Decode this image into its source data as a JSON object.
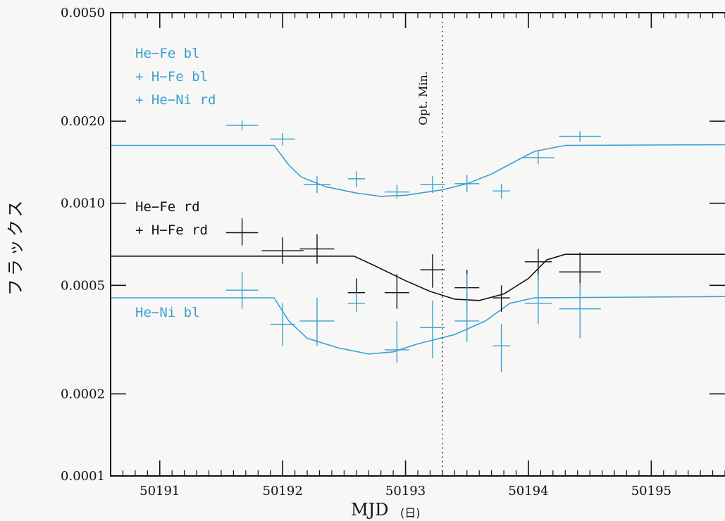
{
  "chart_data": {
    "type": "scatter",
    "x_ticks": [
      50191,
      50192,
      50193,
      50194,
      50195
    ],
    "x_tick_labels": [
      "50191",
      "50192",
      "50193",
      "50194",
      "50195"
    ],
    "y_ticks": [
      0.0001,
      0.0002,
      0.0005,
      0.001,
      0.002,
      0.005
    ],
    "y_tick_labels": [
      "0.0001",
      "0.0002",
      "0.0005",
      "0.0010",
      "0.0020",
      "0.0050"
    ],
    "xlim": [
      50190.6,
      50195.6
    ],
    "ylim": [
      0.0001,
      0.005
    ],
    "yscale": "log",
    "xlabel": "MJD",
    "xlabel_unit": "(日)",
    "ylabel": "フラックス",
    "vline": {
      "x": 50193.3,
      "label": "Opt. Min."
    },
    "legend_groups": [
      {
        "color": "#3aa0d2",
        "entries": [
          "He−Fe bl",
          "+ H−Fe bl",
          "+ He−Ni rd"
        ]
      },
      {
        "color": "#111111",
        "entries": [
          "He−Fe rd",
          "+ H−Fe rd"
        ]
      },
      {
        "color": "#3aa0d2",
        "entries": [
          "He−Ni bl"
        ]
      }
    ],
    "model_curves": [
      {
        "color": "#3aa0d2",
        "points": [
          [
            50190.6,
            0.00163
          ],
          [
            50191.4,
            0.00163
          ],
          [
            50191.93,
            0.00163
          ],
          [
            50192.05,
            0.00138
          ],
          [
            50192.15,
            0.00125
          ],
          [
            50192.35,
            0.00115
          ],
          [
            50192.6,
            0.00109
          ],
          [
            50192.8,
            0.00106
          ],
          [
            50193.0,
            0.00107
          ],
          [
            50193.3,
            0.00112
          ],
          [
            50193.5,
            0.00118
          ],
          [
            50193.7,
            0.00128
          ],
          [
            50193.9,
            0.00143
          ],
          [
            50194.05,
            0.00155
          ],
          [
            50194.3,
            0.00163
          ],
          [
            50195.6,
            0.00164
          ]
        ]
      },
      {
        "color": "#111111",
        "points": [
          [
            50190.6,
            0.00064
          ],
          [
            50191.5,
            0.00064
          ],
          [
            50192.58,
            0.00064
          ],
          [
            50192.75,
            0.00059
          ],
          [
            50193.0,
            0.00052
          ],
          [
            50193.2,
            0.000475
          ],
          [
            50193.4,
            0.000445
          ],
          [
            50193.6,
            0.00044
          ],
          [
            50193.8,
            0.000465
          ],
          [
            50194.0,
            0.00053
          ],
          [
            50194.15,
            0.00062
          ],
          [
            50194.3,
            0.00065
          ],
          [
            50195.6,
            0.00065
          ]
        ]
      },
      {
        "color": "#3aa0d2",
        "points": [
          [
            50190.6,
            0.00045
          ],
          [
            50191.5,
            0.00045
          ],
          [
            50191.93,
            0.00045
          ],
          [
            50192.05,
            0.00037
          ],
          [
            50192.2,
            0.00032
          ],
          [
            50192.45,
            0.000295
          ],
          [
            50192.7,
            0.00028
          ],
          [
            50192.9,
            0.000285
          ],
          [
            50193.1,
            0.000305
          ],
          [
            50193.4,
            0.00033
          ],
          [
            50193.65,
            0.00037
          ],
          [
            50193.85,
            0.00043
          ],
          [
            50194.05,
            0.00045
          ],
          [
            50195.6,
            0.000455
          ]
        ]
      }
    ],
    "series": [
      {
        "color": "#3aa0d2",
        "points": [
          {
            "x": 50191.67,
            "y": 0.00193,
            "xerr": 0.13,
            "ylo": 0.00185,
            "yhi": 0.00201
          },
          {
            "x": 50192.0,
            "y": 0.00172,
            "xerr": 0.1,
            "ylo": 0.00163,
            "yhi": 0.00181
          },
          {
            "x": 50192.28,
            "y": 0.00117,
            "xerr": 0.11,
            "ylo": 0.00109,
            "yhi": 0.00126
          },
          {
            "x": 50192.6,
            "y": 0.00123,
            "xerr": 0.07,
            "ylo": 0.00115,
            "yhi": 0.00131
          },
          {
            "x": 50192.93,
            "y": 0.0011,
            "xerr": 0.1,
            "ylo": 0.00104,
            "yhi": 0.00117
          },
          {
            "x": 50193.22,
            "y": 0.00117,
            "xerr": 0.1,
            "ylo": 0.00109,
            "yhi": 0.00126
          },
          {
            "x": 50193.5,
            "y": 0.00118,
            "xerr": 0.1,
            "ylo": 0.0011,
            "yhi": 0.00127
          },
          {
            "x": 50193.78,
            "y": 0.00111,
            "xerr": 0.07,
            "ylo": 0.00104,
            "yhi": 0.00118
          },
          {
            "x": 50194.08,
            "y": 0.00147,
            "xerr": 0.13,
            "ylo": 0.00139,
            "yhi": 0.00156
          },
          {
            "x": 50194.42,
            "y": 0.00176,
            "xerr": 0.17,
            "ylo": 0.00168,
            "yhi": 0.00184
          }
        ]
      },
      {
        "color": "#111111",
        "points": [
          {
            "x": 50191.67,
            "y": 0.00078,
            "xerr": 0.13,
            "ylo": 0.0007,
            "yhi": 0.00088
          },
          {
            "x": 50192.0,
            "y": 0.00067,
            "xerr": 0.17,
            "ylo": 0.0006,
            "yhi": 0.00075
          },
          {
            "x": 50192.28,
            "y": 0.00068,
            "xerr": 0.14,
            "ylo": 0.0006,
            "yhi": 0.00077
          },
          {
            "x": 50192.6,
            "y": 0.00047,
            "xerr": 0.07,
            "ylo": 0.00042,
            "yhi": 0.00053
          },
          {
            "x": 50192.93,
            "y": 0.00047,
            "xerr": 0.1,
            "ylo": 0.00041,
            "yhi": 0.00055
          },
          {
            "x": 50193.22,
            "y": 0.00057,
            "xerr": 0.1,
            "ylo": 0.00049,
            "yhi": 0.00065
          },
          {
            "x": 50193.5,
            "y": 0.00049,
            "xerr": 0.1,
            "ylo": 0.00042,
            "yhi": 0.00057
          },
          {
            "x": 50193.78,
            "y": 0.00045,
            "xerr": 0.07,
            "ylo": 0.0004,
            "yhi": 0.0005
          },
          {
            "x": 50194.08,
            "y": 0.00061,
            "xerr": 0.11,
            "ylo": 0.00052,
            "yhi": 0.00068
          },
          {
            "x": 50194.42,
            "y": 0.00056,
            "xerr": 0.17,
            "ylo": 0.00048,
            "yhi": 0.00066
          }
        ]
      },
      {
        "color": "#3aa0d2",
        "points": [
          {
            "x": 50191.67,
            "y": 0.00048,
            "xerr": 0.13,
            "ylo": 0.00041,
            "yhi": 0.00056
          },
          {
            "x": 50192.0,
            "y": 0.00036,
            "xerr": 0.1,
            "ylo": 0.0003,
            "yhi": 0.00043
          },
          {
            "x": 50192.28,
            "y": 0.00037,
            "xerr": 0.14,
            "ylo": 0.0003,
            "yhi": 0.00045
          },
          {
            "x": 50192.6,
            "y": 0.00043,
            "xerr": 0.07,
            "ylo": 0.0004,
            "yhi": 0.00047
          },
          {
            "x": 50192.93,
            "y": 0.00029,
            "xerr": 0.1,
            "ylo": 0.00026,
            "yhi": 0.00037
          },
          {
            "x": 50193.22,
            "y": 0.00035,
            "xerr": 0.1,
            "ylo": 0.00027,
            "yhi": 0.00044
          },
          {
            "x": 50193.5,
            "y": 0.00037,
            "xerr": 0.1,
            "ylo": 0.00031,
            "yhi": 0.00055
          },
          {
            "x": 50193.78,
            "y": 0.0003,
            "xerr": 0.07,
            "ylo": 0.00024,
            "yhi": 0.00036
          },
          {
            "x": 50194.08,
            "y": 0.00043,
            "xerr": 0.11,
            "ylo": 0.00036,
            "yhi": 0.00055
          },
          {
            "x": 50194.42,
            "y": 0.00041,
            "xerr": 0.17,
            "ylo": 0.00032,
            "yhi": 0.00051
          }
        ]
      }
    ]
  }
}
